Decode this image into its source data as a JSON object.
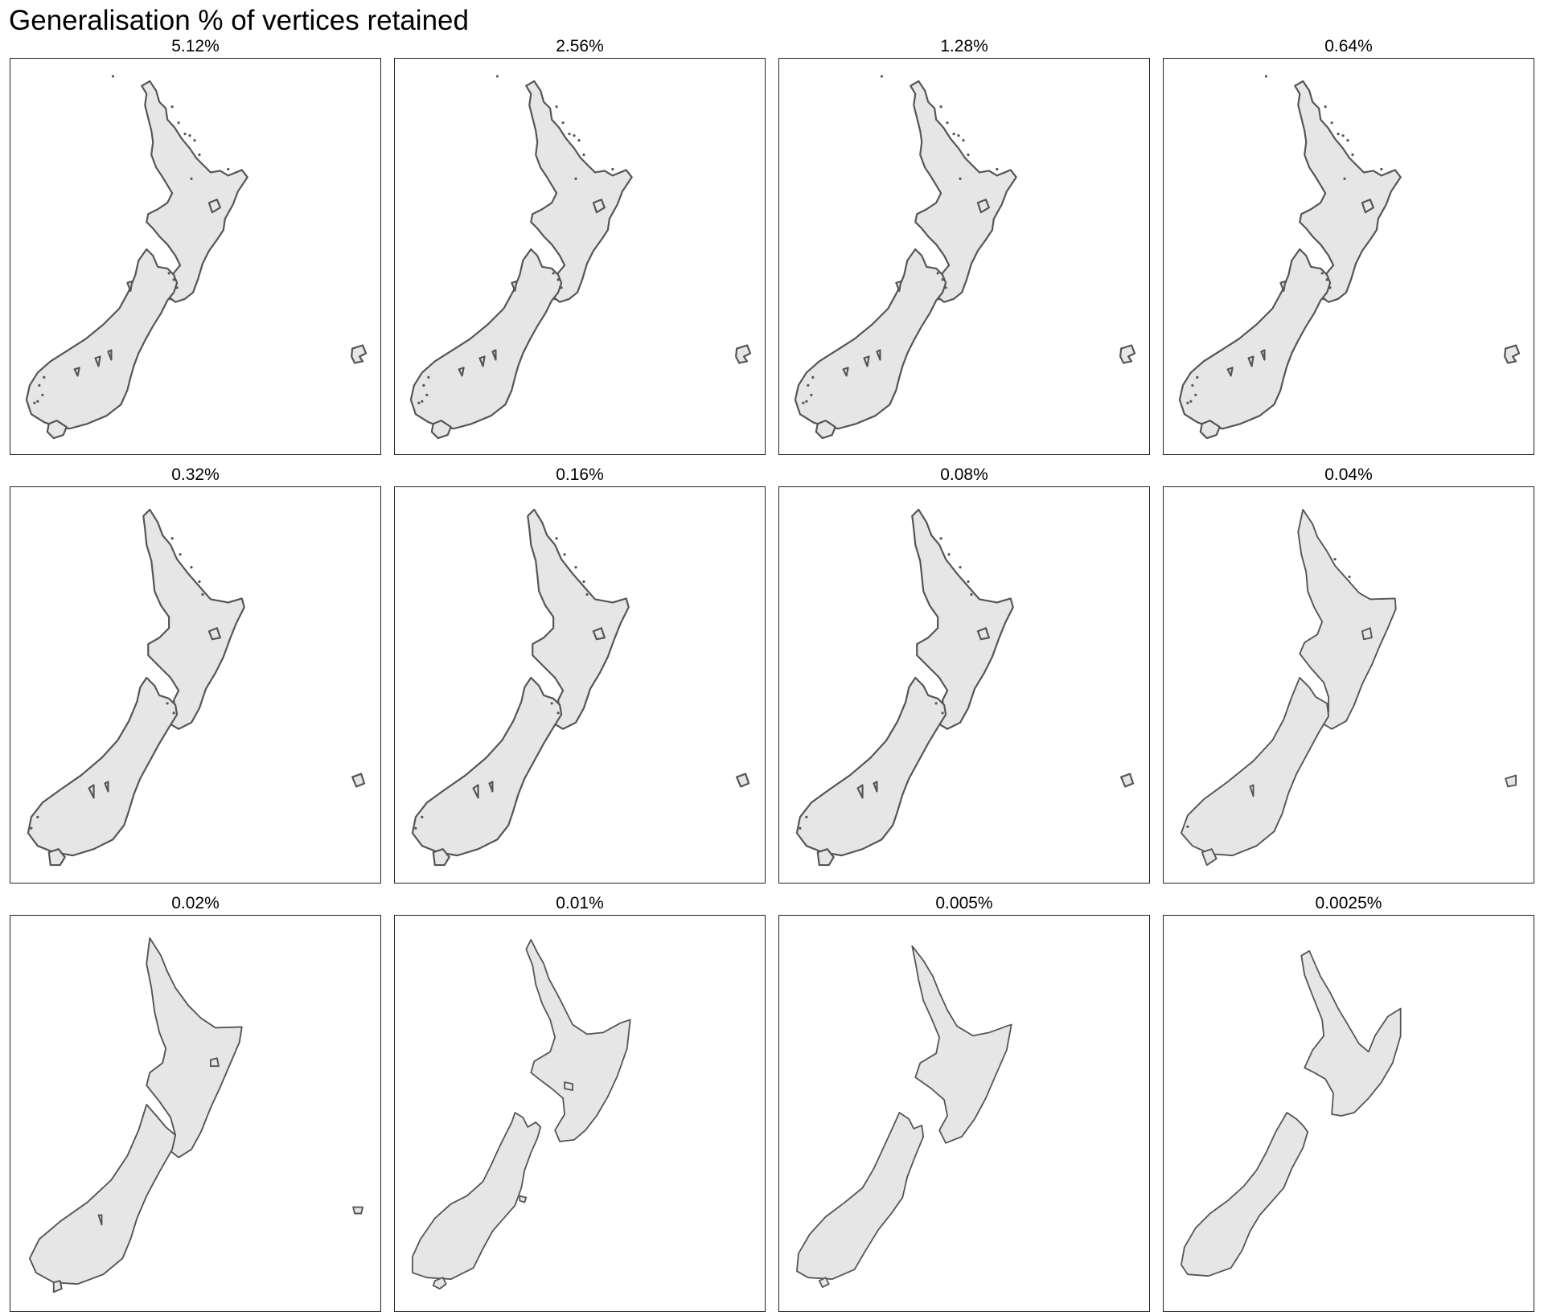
{
  "title": "Generalisation % of vertices retained",
  "colors": {
    "land_fill": "#e6e6e6",
    "outline": "#555555",
    "frame": "#222222"
  },
  "panels": [
    {
      "label": "5.12%",
      "detail": 1
    },
    {
      "label": "2.56%",
      "detail": 1
    },
    {
      "label": "1.28%",
      "detail": 1
    },
    {
      "label": "0.64%",
      "detail": 1
    },
    {
      "label": "0.32%",
      "detail": 2
    },
    {
      "label": "0.16%",
      "detail": 2
    },
    {
      "label": "0.08%",
      "detail": 2
    },
    {
      "label": "0.04%",
      "detail": 3
    },
    {
      "label": "0.02%",
      "detail": 4
    },
    {
      "label": "0.01%",
      "detail": 5
    },
    {
      "label": "0.005%",
      "detail": 6
    },
    {
      "label": "0.0025%",
      "detail": 7
    }
  ]
}
